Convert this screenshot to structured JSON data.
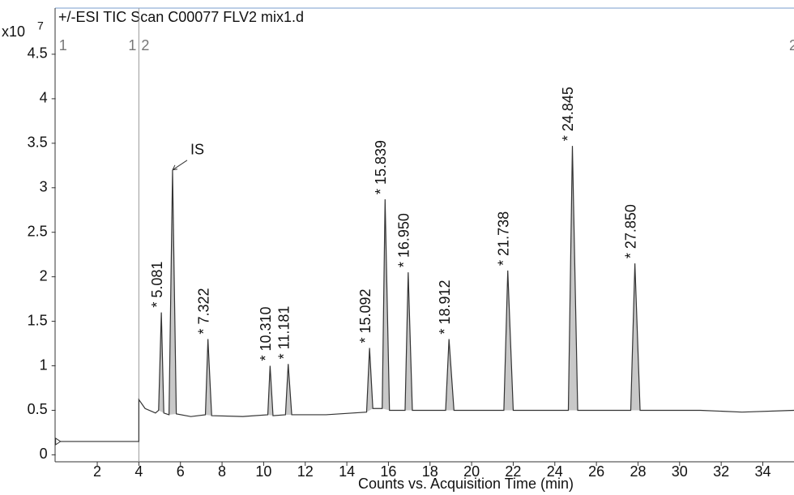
{
  "chart_data": {
    "type": "line",
    "title": "+/-ESI TIC Scan C00077 FLV2 mix1.d",
    "y_multiplier": "x10",
    "y_exponent": "7",
    "x_label": "Counts vs. Acquisition Time (min)",
    "xlim": [
      0,
      35.5
    ],
    "ylim": [
      -0.06,
      5.0
    ],
    "xticks": [
      2,
      4,
      6,
      8,
      10,
      12,
      14,
      16,
      18,
      20,
      22,
      24,
      26,
      28,
      30,
      32,
      34
    ],
    "yticks": [
      0,
      0.5,
      1,
      1.5,
      2,
      2.5,
      3,
      3.5,
      4,
      4.5
    ],
    "segment_boundary": 4,
    "segment_markers": {
      "first_start": "1",
      "first_end": "1",
      "second_start": "2",
      "second_end": "2"
    },
    "series": [
      {
        "color": "#333333",
        "x": [
          0,
          4.0,
          4.0,
          4.3,
          4.8,
          4.95,
          5.081,
          5.2,
          5.45,
          5.62,
          5.8,
          6.5,
          7.2,
          7.322,
          7.5,
          9.0,
          10.2,
          10.31,
          10.45,
          11.05,
          11.181,
          11.35,
          13.0,
          14.95,
          15.092,
          15.25,
          15.7,
          15.839,
          16.05,
          16.8,
          16.95,
          17.15,
          18.75,
          18.912,
          19.15,
          21.55,
          21.738,
          22.0,
          24.65,
          24.845,
          25.1,
          27.65,
          27.85,
          28.1,
          31.0,
          33.0,
          35.5
        ],
        "values": [
          0.15,
          0.15,
          0.62,
          0.52,
          0.47,
          0.5,
          1.6,
          0.47,
          0.45,
          3.2,
          0.46,
          0.43,
          0.45,
          1.3,
          0.44,
          0.43,
          0.45,
          1.0,
          0.44,
          0.45,
          1.02,
          0.45,
          0.45,
          0.48,
          1.2,
          0.52,
          0.52,
          2.87,
          0.5,
          0.5,
          2.05,
          0.5,
          0.5,
          1.3,
          0.5,
          0.5,
          2.07,
          0.5,
          0.5,
          3.47,
          0.5,
          0.5,
          2.15,
          0.5,
          0.5,
          0.48,
          0.5
        ]
      }
    ],
    "peak_fill": "#c8c8c8",
    "peaks": [
      {
        "label": "* 5.081",
        "x": 5.081
      },
      {
        "label": "* 7.322",
        "x": 7.322
      },
      {
        "label": "* 10.310",
        "x": 10.31
      },
      {
        "label": "* 11.181",
        "x": 11.181
      },
      {
        "label": "* 15.092",
        "x": 15.092
      },
      {
        "label": "* 15.839",
        "x": 15.839
      },
      {
        "label": "* 16.950",
        "x": 16.95
      },
      {
        "label": "* 18.912",
        "x": 18.912
      },
      {
        "label": "* 21.738",
        "x": 21.738
      },
      {
        "label": "* 24.845",
        "x": 24.845
      },
      {
        "label": "* 27.850",
        "x": 27.85
      }
    ],
    "internal_standard": {
      "label": "IS",
      "x": 5.62
    }
  }
}
